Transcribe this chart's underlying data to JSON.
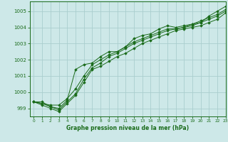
{
  "title": "Graphe pression niveau de la mer (hPa)",
  "background_color": "#cde8e8",
  "grid_color": "#aacece",
  "line_color": "#1a6b1a",
  "xlim": [
    -0.5,
    23
  ],
  "ylim": [
    998.5,
    1005.6
  ],
  "yticks": [
    999,
    1000,
    1001,
    1002,
    1003,
    1004,
    1005
  ],
  "xticks": [
    0,
    1,
    2,
    3,
    4,
    5,
    6,
    7,
    8,
    9,
    10,
    11,
    12,
    13,
    14,
    15,
    16,
    17,
    18,
    19,
    20,
    21,
    22,
    23
  ],
  "series": [
    [
      999.4,
      999.4,
      999.1,
      999.0,
      999.5,
      1001.4,
      1001.7,
      1001.8,
      1002.2,
      1002.5,
      1002.5,
      1002.8,
      1003.3,
      1003.5,
      1003.6,
      1003.9,
      1004.1,
      1004.0,
      1004.1,
      1004.2,
      1004.3,
      1004.7,
      1005.0,
      1005.3
    ],
    [
      999.4,
      999.3,
      999.2,
      999.2,
      999.6,
      1000.2,
      1001.0,
      1001.7,
      1002.0,
      1002.3,
      1002.5,
      1002.8,
      1003.1,
      1003.3,
      1003.5,
      1003.7,
      1003.9,
      1003.9,
      1004.0,
      1004.2,
      1004.4,
      1004.6,
      1004.8,
      1005.1
    ],
    [
      999.4,
      999.3,
      999.1,
      998.9,
      999.4,
      999.9,
      1000.8,
      1001.5,
      1001.8,
      1002.2,
      1002.4,
      1002.7,
      1003.0,
      1003.2,
      1003.4,
      1003.6,
      1003.8,
      1003.9,
      1004.0,
      1004.1,
      1004.3,
      1004.5,
      1004.7,
      1005.0
    ],
    [
      999.4,
      999.2,
      999.0,
      998.8,
      999.3,
      999.8,
      1000.6,
      1001.4,
      1001.6,
      1001.9,
      1002.2,
      1002.4,
      1002.7,
      1003.0,
      1003.2,
      1003.4,
      1003.6,
      1003.8,
      1003.9,
      1004.0,
      1004.1,
      1004.3,
      1004.5,
      1004.9
    ]
  ]
}
